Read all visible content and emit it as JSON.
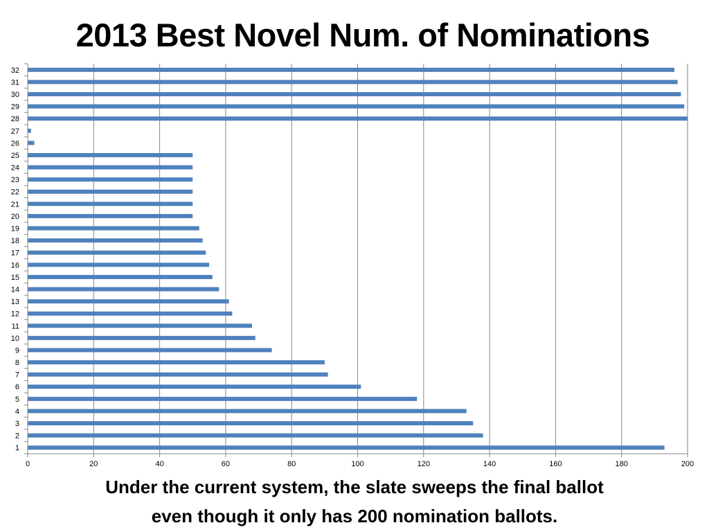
{
  "title": "2013 Best Novel Num. of Nominations",
  "caption": {
    "line1": "Under the current system, the slate sweeps the final ballot",
    "line2": "even though it only has 200 nomination ballots."
  },
  "colors": {
    "bar": "#4F81BD",
    "grid": "#868686",
    "axis": "#868686"
  },
  "chart_data": {
    "type": "bar",
    "orientation": "horizontal",
    "title": "2013 Best Novel Num. of Nominations",
    "categories": [
      "1",
      "2",
      "3",
      "4",
      "5",
      "6",
      "7",
      "8",
      "9",
      "10",
      "11",
      "12",
      "13",
      "14",
      "15",
      "16",
      "17",
      "18",
      "19",
      "20",
      "21",
      "22",
      "23",
      "24",
      "25",
      "26",
      "27",
      "28",
      "29",
      "30",
      "31",
      "32"
    ],
    "values": [
      193,
      138,
      135,
      133,
      118,
      101,
      91,
      90,
      74,
      69,
      68,
      62,
      61,
      58,
      56,
      55,
      54,
      53,
      52,
      50,
      50,
      50,
      50,
      50,
      50,
      2,
      1,
      200,
      199,
      198,
      197,
      196
    ],
    "xlim": [
      0,
      200
    ],
    "x_ticks": [
      "0",
      "20",
      "40",
      "60",
      "80",
      "100",
      "120",
      "140",
      "160",
      "180",
      "200"
    ],
    "grid": "vertical",
    "legend": "none",
    "xlabel": "",
    "ylabel": ""
  }
}
